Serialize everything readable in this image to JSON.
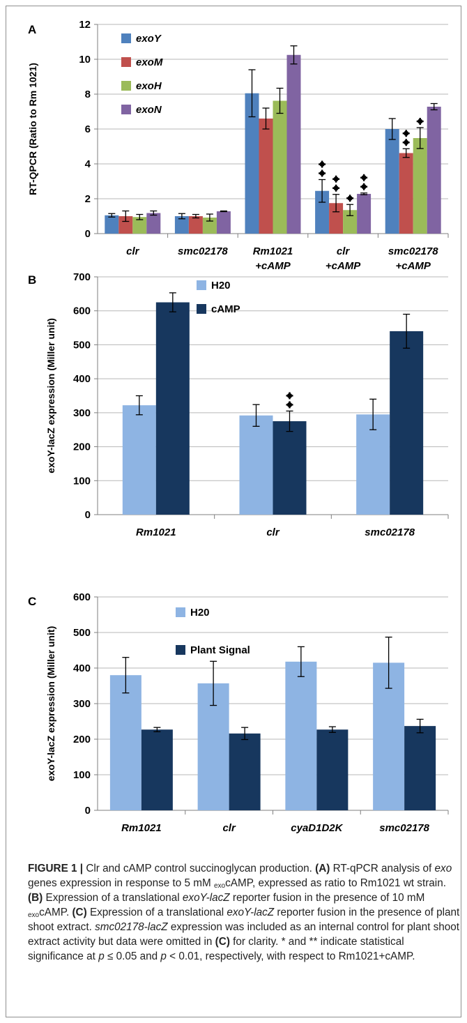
{
  "chart_data": [
    {
      "panel": "A",
      "type": "bar",
      "ylabel": "RT-QPCR (Ratio to Rm 1021)",
      "ylim": [
        0,
        12
      ],
      "yticks": [
        "0",
        "2",
        "4",
        "6",
        "8",
        "10",
        "12"
      ],
      "grid": true,
      "legend_position": "top-left",
      "categories": [
        [
          "clr"
        ],
        [
          "smc02178"
        ],
        [
          "Rm1021",
          "+cAMP"
        ],
        [
          "clr",
          "+cAMP"
        ],
        [
          "smc02178",
          "+cAMP"
        ]
      ],
      "series": [
        {
          "name": "exoY",
          "color": "#4f81bd",
          "values": [
            1.05,
            1.0,
            8.05,
            2.45,
            6.0
          ],
          "errors": [
            0.1,
            0.15,
            1.35,
            0.65,
            0.6
          ],
          "sig": [
            0,
            0,
            0,
            2,
            0
          ]
        },
        {
          "name": "exoM",
          "color": "#c0504d",
          "values": [
            1.0,
            1.0,
            6.6,
            1.75,
            4.62
          ],
          "errors": [
            0.3,
            0.1,
            0.6,
            0.5,
            0.25
          ],
          "sig": [
            0,
            0,
            0,
            2,
            2
          ]
        },
        {
          "name": "exoH",
          "color": "#9bbb59",
          "values": [
            0.95,
            0.92,
            7.62,
            1.35,
            5.48
          ],
          "errors": [
            0.15,
            0.2,
            0.72,
            0.32,
            0.6
          ],
          "sig": [
            0,
            0,
            0,
            1,
            1
          ]
        },
        {
          "name": "exoN",
          "color": "#8064a2",
          "values": [
            1.18,
            1.28,
            10.25,
            2.28,
            7.28
          ],
          "errors": [
            0.12,
            0.02,
            0.52,
            0.05,
            0.18
          ],
          "sig": [
            0,
            0,
            0,
            2,
            0
          ]
        }
      ]
    },
    {
      "panel": "B",
      "type": "bar",
      "ylabel": "exoY-lacZ expression (Miller unit)",
      "ylim": [
        0,
        700
      ],
      "yticks": [
        "0",
        "100",
        "200",
        "300",
        "400",
        "500",
        "600",
        "700"
      ],
      "grid": true,
      "legend_position": "top-center",
      "categories": [
        [
          "Rm1021"
        ],
        [
          "clr"
        ],
        [
          "smc02178"
        ]
      ],
      "series": [
        {
          "name": "H20",
          "color": "#8eb4e3",
          "values": [
            322,
            292,
            295
          ],
          "errors": [
            28,
            32,
            45
          ],
          "sig": [
            0,
            0,
            0
          ]
        },
        {
          "name": "cAMP",
          "color": "#17375e",
          "values": [
            625,
            275,
            540
          ],
          "errors": [
            28,
            30,
            50
          ],
          "sig": [
            0,
            2,
            0
          ]
        }
      ]
    },
    {
      "panel": "C",
      "type": "bar",
      "ylabel": "exoY-lacZ expression (Miller unit)",
      "ylim": [
        0,
        600
      ],
      "yticks": [
        "0",
        "100",
        "200",
        "300",
        "400",
        "500",
        "600"
      ],
      "grid": true,
      "legend_position": "top-center",
      "categories": [
        [
          "Rm1021"
        ],
        [
          "clr"
        ],
        [
          "cyaD1D2K"
        ],
        [
          "smc02178"
        ]
      ],
      "series": [
        {
          "name": "H20",
          "color": "#8eb4e3",
          "values": [
            380,
            357,
            418,
            415
          ],
          "errors": [
            50,
            62,
            42,
            72
          ],
          "sig": [
            0,
            0,
            0,
            0
          ]
        },
        {
          "name": "Plant Signal",
          "color": "#17375e",
          "values": [
            227,
            216,
            227,
            237
          ],
          "errors": [
            6,
            17,
            8,
            19
          ],
          "sig": [
            0,
            0,
            0,
            0
          ]
        }
      ]
    }
  ],
  "caption": {
    "label": "FIGURE 1 |",
    "t1": " Clr and cAMP control succinoglycan production. ",
    "a": "(A)",
    "t2": " RT-qPCR analysis of ",
    "exo": "exo",
    "t3": " genes expression in response to 5 mM ",
    "sub1": "exo",
    "t4": "cAMP, expressed as ratio to Rm1021 wt strain. ",
    "b": "(B)",
    "t5": " Expression of a translational ",
    "exoylacz1": "exoY-lacZ",
    "t6": " reporter fusion in the presence of 10 mM ",
    "sub2": "exo",
    "t7": "cAMP. ",
    "c": "(C)",
    "t8": " Expression of a translational ",
    "exoylacz2": "exoY-lacZ",
    "t9": " reporter fusion in the presence of plant shoot extract. ",
    "smclacz": "smc02178-lacZ",
    "t10": " expression was included as an internal control for plant shoot extract activity but data were omitted in ",
    "c2": "(C)",
    "t11": " for clarity. * and ** indicate statistical significance at ",
    "p1": "p",
    "t12": " ≤ 0.05 and ",
    "p2": "p",
    "t13": " < 0.01, respectively, with respect to Rm1021+cAMP."
  }
}
